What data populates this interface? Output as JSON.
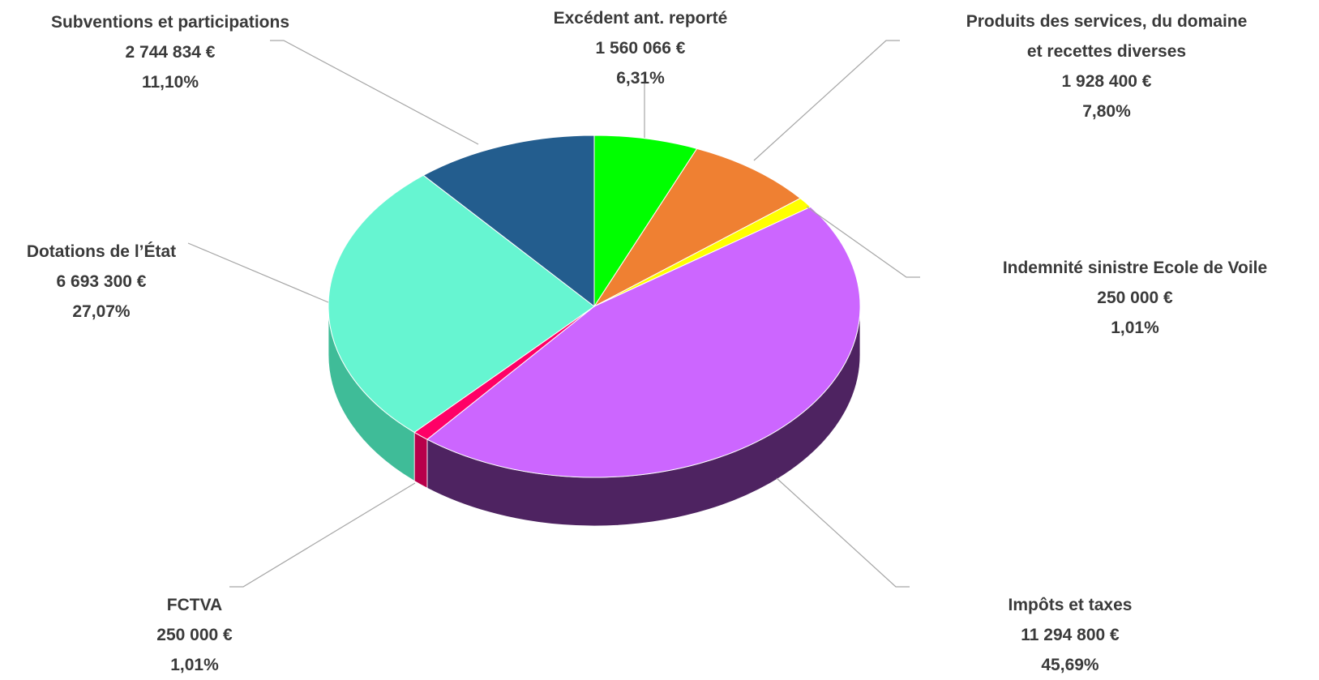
{
  "chart_data": {
    "type": "pie",
    "style": "3d",
    "currency": "€",
    "slices": [
      {
        "name": "Excédent ant. reporté",
        "value": 1560066,
        "value_label": "1 560 066 €",
        "percent_label": "6,31%",
        "percent": 6.31,
        "color": "#00ff00",
        "side_color": "#00a800"
      },
      {
        "name": "Produits des services, du domaine et recettes diverses",
        "name_lines": [
          "Produits des services, du domaine",
          "et recettes diverses"
        ],
        "value": 1928400,
        "value_label": "1 928 400 €",
        "percent_label": "7,80%",
        "percent": 7.8,
        "color": "#ef8032",
        "side_color": "#a0531d"
      },
      {
        "name": "Indemnité sinistre Ecole de Voile",
        "value": 250000,
        "value_label": "250 000 €",
        "percent_label": "1,01%",
        "percent": 1.01,
        "color": "#ffff00",
        "side_color": "#a8a800"
      },
      {
        "name": "Impôts et taxes",
        "value": 11294800,
        "value_label": "11 294 800 €",
        "percent_label": "45,69%",
        "percent": 45.69,
        "color": "#cc66ff",
        "side_color": "#4e2361"
      },
      {
        "name": "FCTVA",
        "value": 250000,
        "value_label": "250 000 €",
        "percent_label": "1,01%",
        "percent": 1.01,
        "color": "#ff0066",
        "side_color": "#b8004a"
      },
      {
        "name": "Dotations de l’État",
        "value": 6693300,
        "value_label": "6 693 300 €",
        "percent_label": "27,07%",
        "percent": 27.07,
        "color": "#66f5d1",
        "side_color": "#3fbc98"
      },
      {
        "name": "Subventions et participations",
        "value": 2744834,
        "value_label": "2 744 834 €",
        "percent_label": "11,10%",
        "percent": 11.1,
        "color": "#235d8e",
        "side_color": "#163c5c"
      }
    ]
  }
}
